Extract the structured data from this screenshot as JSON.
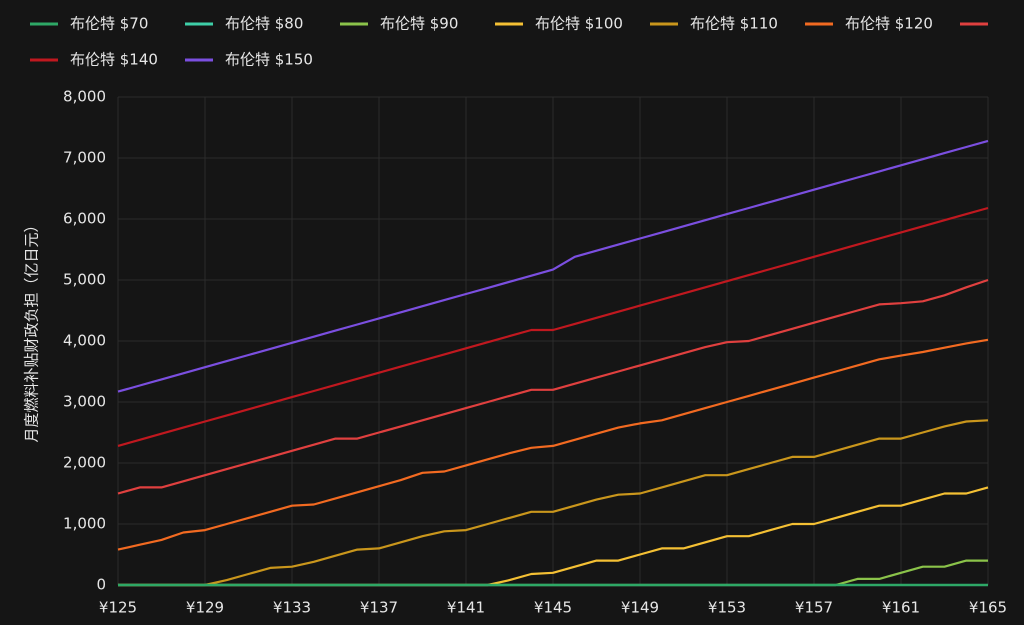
{
  "chart_data": {
    "type": "line",
    "y_label": "月度燃料补贴财政负担（亿日元）",
    "x": [
      125,
      126,
      127,
      128,
      129,
      130,
      131,
      132,
      133,
      134,
      135,
      136,
      137,
      138,
      139,
      140,
      141,
      142,
      143,
      144,
      145,
      146,
      147,
      148,
      149,
      150,
      151,
      152,
      153,
      154,
      155,
      156,
      157,
      158,
      159,
      160,
      161,
      162,
      163,
      164,
      165
    ],
    "xlim": [
      125,
      165
    ],
    "xticks": [
      {
        "value": 125,
        "label": "¥125"
      },
      {
        "value": 129,
        "label": "¥129"
      },
      {
        "value": 133,
        "label": "¥133"
      },
      {
        "value": 137,
        "label": "¥137"
      },
      {
        "value": 141,
        "label": "¥141"
      },
      {
        "value": 145,
        "label": "¥145"
      },
      {
        "value": 149,
        "label": "¥149"
      },
      {
        "value": 153,
        "label": "¥153"
      },
      {
        "value": 157,
        "label": "¥157"
      },
      {
        "value": 161,
        "label": "¥161"
      },
      {
        "value": 165,
        "label": "¥165"
      }
    ],
    "ylim": [
      0,
      8000
    ],
    "yticks": [
      0,
      {
        "value": 1000,
        "label": "1,000"
      },
      {
        "value": 2000,
        "label": "2,000"
      },
      {
        "value": 3000,
        "label": "3,000"
      },
      {
        "value": 4000,
        "label": "4,000"
      },
      {
        "value": 5000,
        "label": "5,000"
      },
      {
        "value": 6000,
        "label": "6,000"
      },
      {
        "value": 7000,
        "label": "7,000"
      },
      {
        "value": 8000,
        "label": "8,000"
      }
    ],
    "grid": true,
    "legend": "top",
    "series": [
      {
        "name": "布伦特 $70",
        "color": "#2ea866",
        "values": [
          0,
          0,
          0,
          0,
          0,
          0,
          0,
          0,
          0,
          0,
          0,
          0,
          0,
          0,
          0,
          0,
          0,
          0,
          0,
          0,
          0,
          0,
          0,
          0,
          0,
          0,
          0,
          0,
          0,
          0,
          0,
          0,
          0,
          0,
          0,
          0,
          0,
          0,
          0,
          0,
          0
        ]
      },
      {
        "name": "布伦特 $80",
        "color": "#3ecfa8",
        "values": [
          0,
          0,
          0,
          0,
          0,
          0,
          0,
          0,
          0,
          0,
          0,
          0,
          0,
          0,
          0,
          0,
          0,
          0,
          0,
          0,
          0,
          0,
          0,
          0,
          0,
          0,
          0,
          0,
          0,
          0,
          0,
          0,
          0,
          0,
          0,
          0,
          0,
          0,
          0,
          0,
          0
        ]
      },
      {
        "name": "布伦特 $90",
        "color": "#8bc34a",
        "values": [
          0,
          0,
          0,
          0,
          0,
          0,
          0,
          0,
          0,
          0,
          0,
          0,
          0,
          0,
          0,
          0,
          0,
          0,
          0,
          0,
          0,
          0,
          0,
          0,
          0,
          0,
          0,
          0,
          0,
          0,
          0,
          0,
          0,
          0,
          100,
          100,
          200,
          300,
          300,
          400,
          400
        ]
      },
      {
        "name": "布伦特 $100",
        "color": "#f4c034",
        "values": [
          0,
          0,
          0,
          0,
          0,
          0,
          0,
          0,
          0,
          0,
          0,
          0,
          0,
          0,
          0,
          0,
          0,
          0,
          80,
          180,
          200,
          300,
          400,
          400,
          500,
          600,
          600,
          700,
          800,
          800,
          900,
          1000,
          1000,
          1100,
          1200,
          1300,
          1300,
          1400,
          1500,
          1500,
          1600
        ]
      },
      {
        "name": "布伦特 $110",
        "color": "#c9961c",
        "values": [
          0,
          0,
          0,
          0,
          0,
          80,
          180,
          280,
          300,
          380,
          480,
          580,
          600,
          700,
          800,
          880,
          900,
          1000,
          1100,
          1200,
          1200,
          1300,
          1400,
          1480,
          1500,
          1600,
          1700,
          1800,
          1800,
          1900,
          2000,
          2100,
          2100,
          2200,
          2300,
          2400,
          2400,
          2500,
          2600,
          2680,
          2700
        ]
      },
      {
        "name": "布伦特 $120",
        "color": "#f26a21",
        "values": [
          580,
          660,
          740,
          860,
          900,
          1000,
          1100,
          1200,
          1300,
          1320,
          1420,
          1520,
          1620,
          1720,
          1840,
          1860,
          1960,
          2060,
          2160,
          2250,
          2280,
          2380,
          2480,
          2580,
          2650,
          2700,
          2800,
          2900,
          3000,
          3100,
          3200,
          3300,
          3400,
          3500,
          3600,
          3700,
          3760,
          3820,
          3890,
          3960,
          4020
        ]
      },
      {
        "name": null,
        "color": "#e0403f",
        "values": [
          1500,
          1600,
          1600,
          1700,
          1800,
          1900,
          2000,
          2100,
          2200,
          2300,
          2400,
          2400,
          2500,
          2600,
          2700,
          2800,
          2900,
          3000,
          3100,
          3200,
          3200,
          3300,
          3400,
          3500,
          3600,
          3700,
          3800,
          3900,
          3980,
          4000,
          4100,
          4200,
          4300,
          4400,
          4500,
          4600,
          4620,
          4650,
          4750,
          4880,
          5000
        ]
      },
      {
        "name": "布伦特 $140",
        "color": "#c0181f",
        "values": [
          2280,
          2380,
          2480,
          2580,
          2680,
          2780,
          2880,
          2980,
          3080,
          3180,
          3280,
          3380,
          3480,
          3580,
          3680,
          3780,
          3880,
          3980,
          4080,
          4180,
          4180,
          4280,
          4380,
          4480,
          4580,
          4680,
          4780,
          4880,
          4980,
          5080,
          5180,
          5280,
          5380,
          5480,
          5580,
          5680,
          5780,
          5880,
          5980,
          6080,
          6180
        ]
      },
      {
        "name": "布伦特 $150",
        "color": "#7b4fe0",
        "values": [
          3170,
          3270,
          3370,
          3470,
          3570,
          3670,
          3770,
          3870,
          3970,
          4070,
          4170,
          4270,
          4370,
          4470,
          4570,
          4670,
          4770,
          4870,
          4970,
          5070,
          5170,
          5380,
          5480,
          5580,
          5680,
          5780,
          5880,
          5980,
          6080,
          6180,
          6280,
          6380,
          6480,
          6580,
          6680,
          6780,
          6880,
          6980,
          7080,
          7180,
          7280
        ]
      }
    ]
  }
}
